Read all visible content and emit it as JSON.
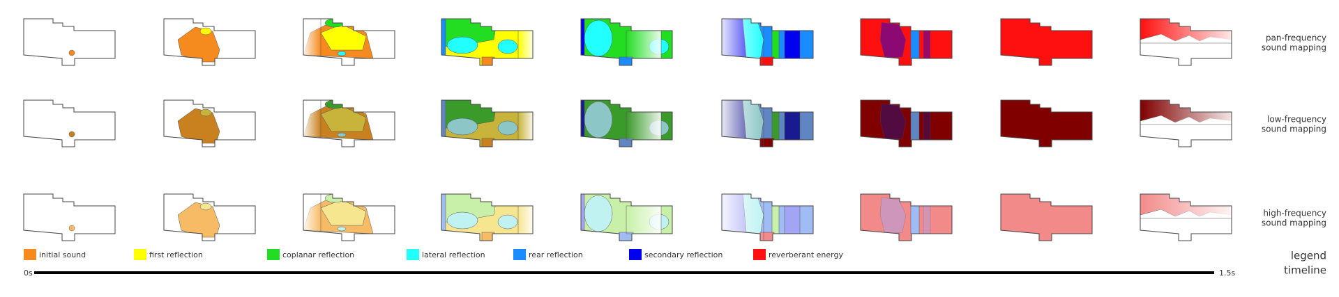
{
  "rows": [
    {
      "lines": [
        "pan-frequency",
        "sound mapping"
      ]
    },
    {
      "lines": [
        "low-frequency",
        "sound mapping"
      ]
    },
    {
      "lines": [
        "high-frequency",
        "sound mapping"
      ]
    }
  ],
  "legend": {
    "title": "legend",
    "items": [
      {
        "label": "initial sound",
        "color": "#f58a1f"
      },
      {
        "label": "first reflection",
        "color": "#ffff00"
      },
      {
        "label": "coplanar reflection",
        "color": "#22dd22"
      },
      {
        "label": "lateral reflection",
        "color": "#22ffff"
      },
      {
        "label": "rear reflection",
        "color": "#1a8cff"
      },
      {
        "label": "secondary reflection",
        "color": "#0000ee"
      },
      {
        "label": "reverberant energy",
        "color": "#ff1010"
      }
    ]
  },
  "timeline": {
    "title": "timeline",
    "start": "0s",
    "end": "1.5s"
  }
}
